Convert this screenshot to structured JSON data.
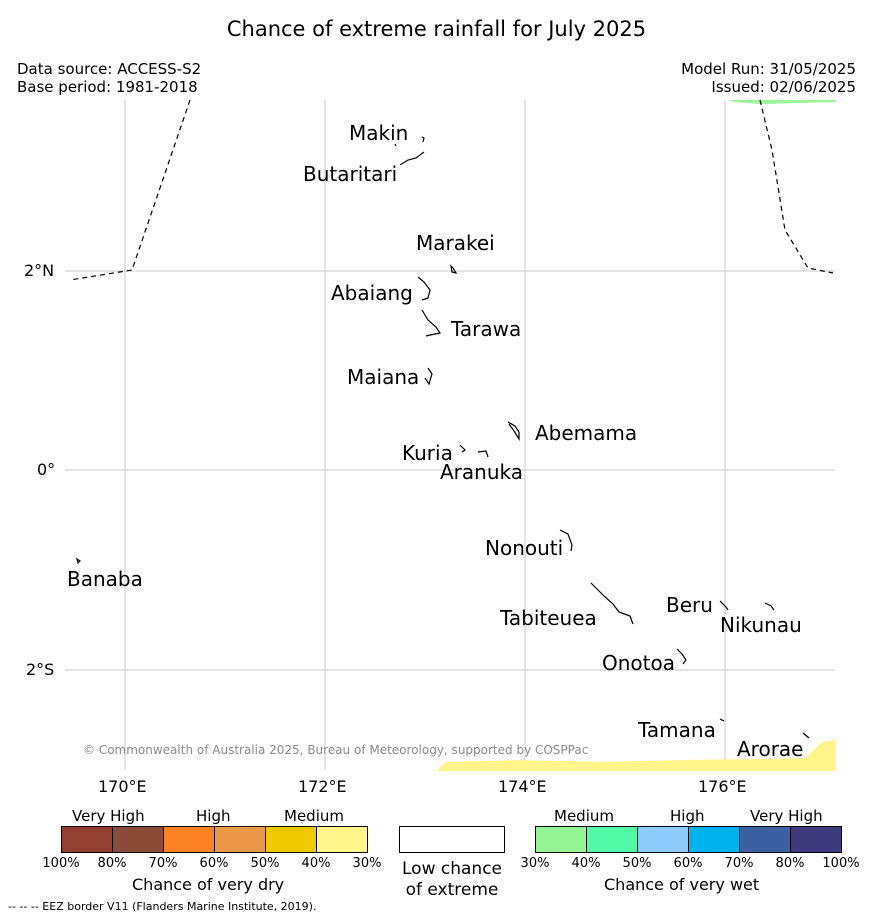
{
  "title": "Chance of extreme rainfall for July 2025",
  "meta": {
    "data_source": "Data source: ACCESS-S2",
    "base_period": "Base period: 1981-2018",
    "model_run": "Model Run: 31/05/2025",
    "issued": "Issued: 02/06/2025"
  },
  "axes": {
    "lat_labels": [
      "2°N",
      "0°",
      "2°S"
    ],
    "lon_labels": [
      "170°E",
      "172°E",
      "174°E",
      "176°E"
    ]
  },
  "islands": [
    "Makin",
    "Butaritari",
    "Marakei",
    "Abaiang",
    "Tarawa",
    "Maiana",
    "Abemama",
    "Kuria",
    "Aranuka",
    "Nonouti",
    "Banaba",
    "Beru",
    "Nikunau",
    "Tabiteuea",
    "Onotoa",
    "Tamana",
    "Arorae"
  ],
  "copyright": "© Commonwealth of Australia 2025, Bureau of Meteorology, supported by COSPPac",
  "legend": {
    "dry": {
      "categories": [
        "Very High",
        "High",
        "Medium"
      ],
      "colors": [
        "#923e33",
        "#8c4c3a",
        "#fd8226",
        "#eb9a4b",
        "#eec800",
        "#fff58b"
      ],
      "ticks": [
        "100%",
        "80%",
        "70%",
        "60%",
        "50%",
        "40%",
        "30%"
      ],
      "title": "Chance of very dry"
    },
    "low": {
      "caption_line1": "Low chance",
      "caption_line2": "of extreme",
      "color": "#ffffff"
    },
    "wet": {
      "categories": [
        "Medium",
        "High",
        "Very High"
      ],
      "colors": [
        "#95f594",
        "#51f8a5",
        "#8ccafb",
        "#00b3ef",
        "#3b61a3",
        "#3f3a7e"
      ],
      "ticks": [
        "30%",
        "40%",
        "50%",
        "60%",
        "70%",
        "80%",
        "100%"
      ],
      "title": "Chance of very wet"
    }
  },
  "footer": "--  --  -- EEZ border V11 (Flanders Marine Institute, 2019)."
}
